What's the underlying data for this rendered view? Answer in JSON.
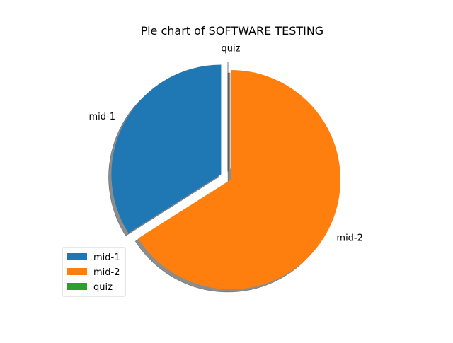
{
  "chart_data": {
    "type": "pie",
    "title": "Pie chart of SOFTWARE TESTING",
    "labels": [
      "mid-1",
      "mid-2",
      "quiz"
    ],
    "values": [
      34,
      66,
      0
    ],
    "colors": [
      "#1f77b4",
      "#ff7f0e",
      "#2ca02c"
    ],
    "start_angle_deg": 90,
    "explode": [
      0.1,
      0,
      0.1
    ],
    "shadow": true,
    "legend": {
      "entries": [
        "mid-1",
        "mid-2",
        "quiz"
      ],
      "placement": "lower-left"
    }
  }
}
